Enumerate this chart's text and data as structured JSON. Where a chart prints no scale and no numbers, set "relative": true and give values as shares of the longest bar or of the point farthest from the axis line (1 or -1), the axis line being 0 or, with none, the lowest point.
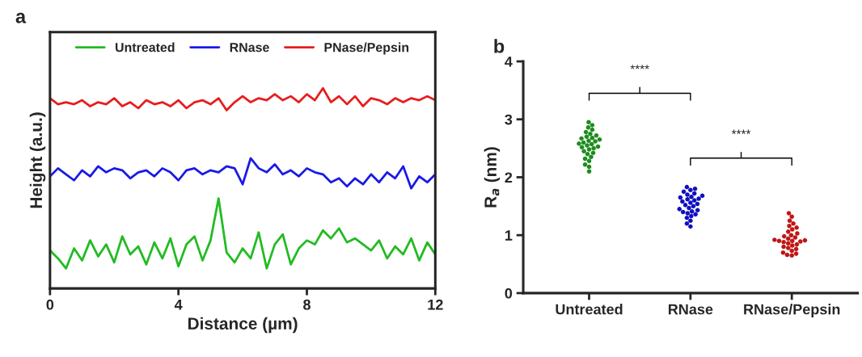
{
  "chart_data": [
    {
      "type": "line",
      "title": "a",
      "xlabel": "Distance (µm)",
      "ylabel": "Height (a.u.)",
      "relative": true,
      "xlim": [
        0,
        12
      ],
      "xticks": [
        0,
        4,
        8,
        12
      ],
      "legend": "top",
      "tick_labels": "x",
      "x": [
        0,
        0.25,
        0.5,
        0.75,
        1,
        1.25,
        1.5,
        1.75,
        2,
        2.25,
        2.5,
        2.75,
        3,
        3.25,
        3.5,
        3.75,
        4,
        4.25,
        4.5,
        4.75,
        5,
        5.25,
        5.5,
        5.75,
        6,
        6.25,
        6.5,
        6.75,
        7,
        7.25,
        7.5,
        7.75,
        8,
        8.25,
        8.5,
        8.75,
        9,
        9.25,
        9.5,
        9.75,
        10,
        10.25,
        10.5,
        10.75,
        11,
        11.25,
        11.5,
        11.75,
        12
      ],
      "series": [
        {
          "name": "Untreated",
          "color": "#22bb22",
          "values": [
            0.19,
            0.15,
            0.1,
            0.2,
            0.14,
            0.24,
            0.16,
            0.22,
            0.13,
            0.26,
            0.17,
            0.21,
            0.12,
            0.23,
            0.15,
            0.25,
            0.11,
            0.22,
            0.26,
            0.14,
            0.24,
            0.45,
            0.18,
            0.13,
            0.2,
            0.15,
            0.28,
            0.1,
            0.22,
            0.27,
            0.12,
            0.2,
            0.24,
            0.22,
            0.29,
            0.25,
            0.3,
            0.23,
            0.25,
            0.22,
            0.19,
            0.24,
            0.15,
            0.21,
            0.17,
            0.25,
            0.14,
            0.23,
            0.17
          ]
        },
        {
          "name": "RNase",
          "color": "#1a1ae6",
          "values": [
            0.56,
            0.6,
            0.57,
            0.54,
            0.59,
            0.56,
            0.61,
            0.58,
            0.6,
            0.59,
            0.55,
            0.58,
            0.59,
            0.56,
            0.6,
            0.58,
            0.54,
            0.59,
            0.6,
            0.57,
            0.59,
            0.58,
            0.61,
            0.6,
            0.52,
            0.65,
            0.6,
            0.58,
            0.62,
            0.57,
            0.59,
            0.56,
            0.6,
            0.58,
            0.57,
            0.53,
            0.55,
            0.51,
            0.55,
            0.52,
            0.57,
            0.53,
            0.58,
            0.55,
            0.61,
            0.5,
            0.56,
            0.53,
            0.57
          ]
        },
        {
          "name": "PNase/Pepsin",
          "color": "#e61e1e",
          "values": [
            0.95,
            0.92,
            0.93,
            0.92,
            0.94,
            0.91,
            0.93,
            0.92,
            0.95,
            0.91,
            0.93,
            0.9,
            0.94,
            0.92,
            0.93,
            0.91,
            0.94,
            0.9,
            0.93,
            0.94,
            0.92,
            0.95,
            0.89,
            0.93,
            0.96,
            0.93,
            0.95,
            0.94,
            0.97,
            0.94,
            0.96,
            0.93,
            0.97,
            0.94,
            1.0,
            0.93,
            0.96,
            0.92,
            0.96,
            0.91,
            0.95,
            0.94,
            0.92,
            0.95,
            0.93,
            0.95,
            0.94,
            0.96,
            0.94
          ]
        }
      ]
    },
    {
      "type": "scatter",
      "title": "b",
      "ylabel": "R$_{a}$ (nm)",
      "categories": [
        "Untreated",
        "RNase",
        "RNase/Pepsin"
      ],
      "ylim": [
        0,
        4
      ],
      "yticks": [
        0,
        1,
        2,
        3,
        4
      ],
      "annotations": [
        "****",
        "****"
      ],
      "series": [
        {
          "color": "#1e8c1e",
          "x": [
            "Untreated",
            "Untreated",
            "Untreated",
            "Untreated",
            "Untreated",
            "Untreated",
            "Untreated",
            "Untreated",
            "Untreated",
            "Untreated",
            "Untreated",
            "Untreated",
            "Untreated",
            "Untreated",
            "Untreated",
            "Untreated",
            "Untreated",
            "Untreated",
            "Untreated",
            "Untreated",
            "Untreated",
            "Untreated",
            "Untreated",
            "Untreated",
            "Untreated",
            "Untreated",
            "Untreated",
            "Untreated",
            "Untreated",
            "Untreated"
          ],
          "values": [
            2.1,
            2.18,
            2.22,
            2.28,
            2.32,
            2.35,
            2.4,
            2.42,
            2.45,
            2.48,
            2.5,
            2.52,
            2.53,
            2.55,
            2.57,
            2.58,
            2.6,
            2.62,
            2.63,
            2.65,
            2.67,
            2.68,
            2.7,
            2.72,
            2.75,
            2.78,
            2.82,
            2.86,
            2.9,
            2.95
          ]
        },
        {
          "color": "#1010c0",
          "x": [
            "RNase",
            "RNase",
            "RNase",
            "RNase",
            "RNase",
            "RNase",
            "RNase",
            "RNase",
            "RNase",
            "RNase",
            "RNase",
            "RNase",
            "RNase",
            "RNase",
            "RNase",
            "RNase",
            "RNase",
            "RNase",
            "RNase",
            "RNase",
            "RNase",
            "RNase",
            "RNase",
            "RNase",
            "RNase",
            "RNase",
            "RNase",
            "RNase",
            "RNase"
          ],
          "values": [
            1.15,
            1.2,
            1.25,
            1.3,
            1.33,
            1.36,
            1.38,
            1.4,
            1.41,
            1.43,
            1.45,
            1.47,
            1.5,
            1.52,
            1.54,
            1.56,
            1.58,
            1.6,
            1.62,
            1.63,
            1.65,
            1.66,
            1.68,
            1.7,
            1.72,
            1.75,
            1.78,
            1.8,
            1.83
          ]
        },
        {
          "color": "#c01515",
          "x": [
            "RNase/Pepsin",
            "RNase/Pepsin",
            "RNase/Pepsin",
            "RNase/Pepsin",
            "RNase/Pepsin",
            "RNase/Pepsin",
            "RNase/Pepsin",
            "RNase/Pepsin",
            "RNase/Pepsin",
            "RNase/Pepsin",
            "RNase/Pepsin",
            "RNase/Pepsin",
            "RNase/Pepsin",
            "RNase/Pepsin",
            "RNase/Pepsin",
            "RNase/Pepsin",
            "RNase/Pepsin",
            "RNase/Pepsin",
            "RNase/Pepsin",
            "RNase/Pepsin",
            "RNase/Pepsin",
            "RNase/Pepsin",
            "RNase/Pepsin",
            "RNase/Pepsin",
            "RNase/Pepsin",
            "RNase/Pepsin",
            "RNase/Pepsin",
            "RNase/Pepsin",
            "RNase/Pepsin",
            "RNase/Pepsin"
          ],
          "values": [
            0.65,
            0.66,
            0.68,
            0.7,
            0.73,
            0.76,
            0.78,
            0.8,
            0.82,
            0.84,
            0.86,
            0.88,
            0.89,
            0.9,
            0.9,
            0.91,
            0.92,
            0.94,
            0.96,
            0.98,
            1.0,
            1.03,
            1.06,
            1.1,
            1.13,
            1.16,
            1.2,
            1.25,
            1.32,
            1.38
          ]
        }
      ]
    }
  ]
}
